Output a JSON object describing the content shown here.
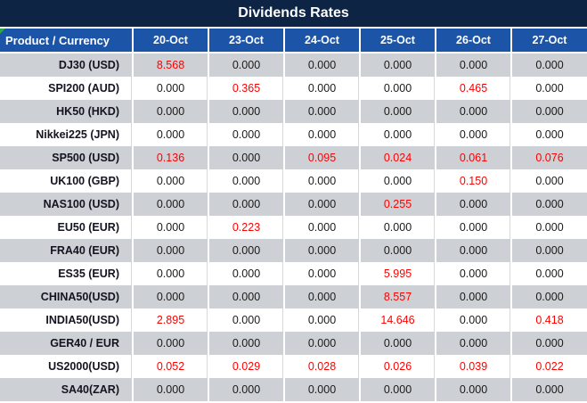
{
  "title": "Dividends Rates",
  "colors": {
    "title_bg": "#0e2445",
    "header_bg": "#1c55a8",
    "stripe_gray": "#cdd0d4",
    "grid_line": "#d9d9d9",
    "highlight_red": "#ff0000",
    "flag_green": "#2ea44f"
  },
  "table": {
    "header": [
      "Product / Currency",
      "20-Oct",
      "23-Oct",
      "24-Oct",
      "25-Oct",
      "26-Oct",
      "27-Oct"
    ],
    "rows": [
      {
        "product": "DJ30 (USD)",
        "values": [
          "8.568",
          "0.000",
          "0.000",
          "0.000",
          "0.000",
          "0.000"
        ]
      },
      {
        "product": "SPI200 (AUD)",
        "values": [
          "0.000",
          "0.365",
          "0.000",
          "0.000",
          "0.465",
          "0.000"
        ]
      },
      {
        "product": "HK50 (HKD)",
        "values": [
          "0.000",
          "0.000",
          "0.000",
          "0.000",
          "0.000",
          "0.000"
        ]
      },
      {
        "product": "Nikkei225 (JPN)",
        "values": [
          "0.000",
          "0.000",
          "0.000",
          "0.000",
          "0.000",
          "0.000"
        ]
      },
      {
        "product": "SP500 (USD)",
        "values": [
          "0.136",
          "0.000",
          "0.095",
          "0.024",
          "0.061",
          "0.076"
        ]
      },
      {
        "product": "UK100 (GBP)",
        "values": [
          "0.000",
          "0.000",
          "0.000",
          "0.000",
          "0.150",
          "0.000"
        ]
      },
      {
        "product": "NAS100 (USD)",
        "values": [
          "0.000",
          "0.000",
          "0.000",
          "0.255",
          "0.000",
          "0.000"
        ]
      },
      {
        "product": "EU50 (EUR)",
        "values": [
          "0.000",
          "0.223",
          "0.000",
          "0.000",
          "0.000",
          "0.000"
        ]
      },
      {
        "product": "FRA40 (EUR)",
        "values": [
          "0.000",
          "0.000",
          "0.000",
          "0.000",
          "0.000",
          "0.000"
        ]
      },
      {
        "product": "ES35 (EUR)",
        "values": [
          "0.000",
          "0.000",
          "0.000",
          "5.995",
          "0.000",
          "0.000"
        ]
      },
      {
        "product": "CHINA50(USD)",
        "values": [
          "0.000",
          "0.000",
          "0.000",
          "8.557",
          "0.000",
          "0.000"
        ]
      },
      {
        "product": "INDIA50(USD)",
        "values": [
          "2.895",
          "0.000",
          "0.000",
          "14.646",
          "0.000",
          "0.418"
        ]
      },
      {
        "product": "GER40 / EUR",
        "values": [
          "0.000",
          "0.000",
          "0.000",
          "0.000",
          "0.000",
          "0.000"
        ]
      },
      {
        "product": "US2000(USD)",
        "values": [
          "0.052",
          "0.029",
          "0.028",
          "0.026",
          "0.039",
          "0.022"
        ]
      },
      {
        "product": "SA40(ZAR)",
        "values": [
          "0.000",
          "0.000",
          "0.000",
          "0.000",
          "0.000",
          "0.000"
        ]
      }
    ]
  }
}
